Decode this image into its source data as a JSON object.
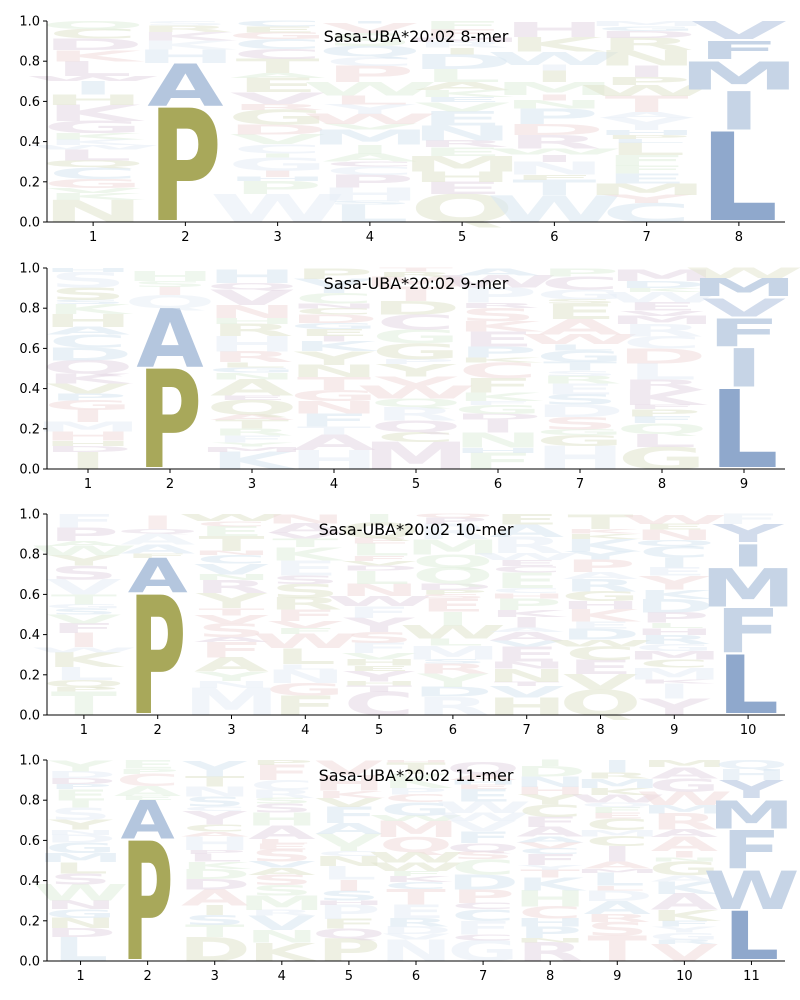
{
  "chart_data": [
    {
      "type": "sequence-logo",
      "title": "Sasa-UBA*20:02 8-mer",
      "positions": [
        "1",
        "2",
        "3",
        "4",
        "5",
        "6",
        "7",
        "8"
      ],
      "ylim": [
        0,
        1
      ],
      "yticks": [
        "0.0",
        "0.2",
        "0.4",
        "0.6",
        "0.8",
        "1.0"
      ],
      "dominant_residues": [
        {
          "position": "2",
          "letters": [
            {
              "letter": "P",
              "value": 0.57
            },
            {
              "letter": "A",
              "value": 0.22
            }
          ]
        },
        {
          "position": "8",
          "letters": [
            {
              "letter": "L",
              "value": 0.45
            },
            {
              "letter": "I",
              "value": 0.2
            },
            {
              "letter": "M",
              "value": 0.15
            },
            {
              "letter": "V",
              "value": 0.1
            },
            {
              "letter": "F",
              "value": 0.1
            }
          ]
        }
      ]
    },
    {
      "type": "sequence-logo",
      "title": "Sasa-UBA*20:02 9-mer",
      "positions": [
        "1",
        "2",
        "3",
        "4",
        "5",
        "6",
        "7",
        "8",
        "9"
      ],
      "ylim": [
        0,
        1
      ],
      "yticks": [
        "0.0",
        "0.2",
        "0.4",
        "0.6",
        "0.8",
        "1.0"
      ],
      "dominant_residues": [
        {
          "position": "2",
          "letters": [
            {
              "letter": "P",
              "value": 0.5
            },
            {
              "letter": "A",
              "value": 0.3
            }
          ]
        },
        {
          "position": "9",
          "letters": [
            {
              "letter": "L",
              "value": 0.4
            },
            {
              "letter": "I",
              "value": 0.2
            },
            {
              "letter": "F",
              "value": 0.15
            },
            {
              "letter": "M",
              "value": 0.1
            },
            {
              "letter": "V",
              "value": 0.1
            }
          ]
        }
      ]
    },
    {
      "type": "sequence-logo",
      "title": "Sasa-UBA*20:02 10-mer",
      "positions": [
        "1",
        "2",
        "3",
        "4",
        "5",
        "6",
        "7",
        "8",
        "9",
        "10"
      ],
      "ylim": [
        0,
        1
      ],
      "yticks": [
        "0.0",
        "0.2",
        "0.4",
        "0.6",
        "0.8",
        "1.0"
      ],
      "dominant_residues": [
        {
          "position": "2",
          "letters": [
            {
              "letter": "P",
              "value": 0.6
            },
            {
              "letter": "A",
              "value": 0.18
            }
          ]
        },
        {
          "position": "10",
          "letters": [
            {
              "letter": "L",
              "value": 0.3
            },
            {
              "letter": "F",
              "value": 0.23
            },
            {
              "letter": "M",
              "value": 0.2
            },
            {
              "letter": "I",
              "value": 0.12
            },
            {
              "letter": "Y",
              "value": 0.1
            }
          ]
        }
      ]
    },
    {
      "type": "sequence-logo",
      "title": "Sasa-UBA*20:02 11-mer",
      "positions": [
        "1",
        "2",
        "3",
        "4",
        "5",
        "6",
        "7",
        "8",
        "9",
        "10",
        "11"
      ],
      "ylim": [
        0,
        1
      ],
      "yticks": [
        "0.0",
        "0.2",
        "0.4",
        "0.6",
        "0.8",
        "1.0"
      ],
      "dominant_residues": [
        {
          "position": "2",
          "letters": [
            {
              "letter": "P",
              "value": 0.6
            },
            {
              "letter": "A",
              "value": 0.2
            }
          ]
        },
        {
          "position": "11",
          "letters": [
            {
              "letter": "L",
              "value": 0.25
            },
            {
              "letter": "F",
              "value": 0.2
            },
            {
              "letter": "W",
              "value": 0.2
            },
            {
              "letter": "M",
              "value": 0.15
            },
            {
              "letter": "Y",
              "value": 0.1
            }
          ]
        }
      ]
    }
  ],
  "colors": {
    "P": "#a8a85a",
    "A": "#b4c6de",
    "L": "#8fa8cc",
    "I": "#c6d4e6",
    "M": "#c6d4e6",
    "V": "#d2dcec",
    "F": "#c6d4e6",
    "W": "#c6d4e6",
    "Y": "#d2dcec",
    "faint": [
      "#e3e6d0",
      "#e6dbe6",
      "#dbe8f2",
      "#e2f0e0",
      "#f2dede",
      "#e8eef6"
    ]
  }
}
